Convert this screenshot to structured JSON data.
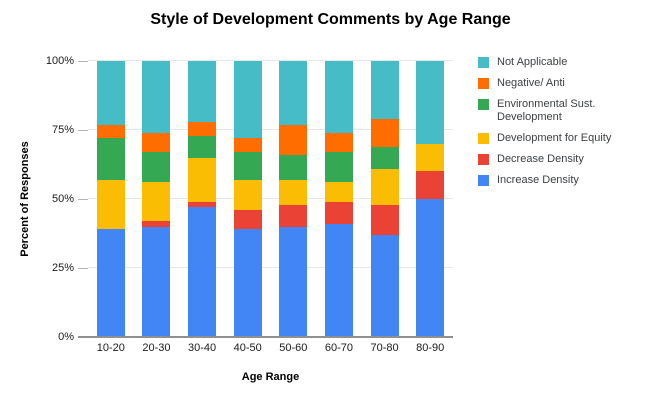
{
  "chart_data": {
    "type": "bar",
    "stacked": true,
    "unit": "percent",
    "title": "Style of Development Comments by Age Range",
    "xlabel": "Age Range",
    "ylabel": "Percent of Responses",
    "ylim": [
      0,
      100
    ],
    "y_ticks": [
      "0%",
      "25%",
      "50%",
      "75%",
      "100%"
    ],
    "grid": true,
    "categories": [
      "10-20",
      "20-30",
      "30-40",
      "40-50",
      "50-60",
      "60-70",
      "70-80",
      "80-90"
    ],
    "series": [
      {
        "name": "Increase Density",
        "color": "#4285F4",
        "values": [
          39,
          40,
          47,
          39,
          40,
          41,
          37,
          50
        ]
      },
      {
        "name": "Decrease Density",
        "color": "#EA4335",
        "values": [
          0,
          2,
          2,
          7,
          8,
          8,
          11,
          10
        ]
      },
      {
        "name": "Development for Equity",
        "color": "#FBBC04",
        "values": [
          18,
          14,
          16,
          11,
          9,
          7,
          13,
          10
        ]
      },
      {
        "name": "Environmental Sust. Development",
        "color": "#34A853",
        "values": [
          15,
          11,
          8,
          10,
          9,
          11,
          8,
          0
        ]
      },
      {
        "name": "Negative/ Anti",
        "color": "#FF6D01",
        "values": [
          5,
          7,
          5,
          5,
          11,
          7,
          10,
          0
        ]
      },
      {
        "name": "Not Applicable",
        "color": "#46BDC6",
        "values": [
          23,
          26,
          22,
          28,
          23,
          26,
          21,
          30
        ]
      }
    ],
    "legend": {
      "position": "right",
      "items": [
        "Not Applicable",
        "Negative/ Anti",
        "Environmental Sust. Development",
        "Development for Equity",
        "Decrease Density",
        "Increase Density"
      ]
    },
    "colors": {
      "gridline": "#e6e6e6",
      "axis_line": "#8f8f8f",
      "tick_text": "#1a1a1a",
      "legend_text": "#3c4043",
      "background": "#ffffff"
    }
  }
}
